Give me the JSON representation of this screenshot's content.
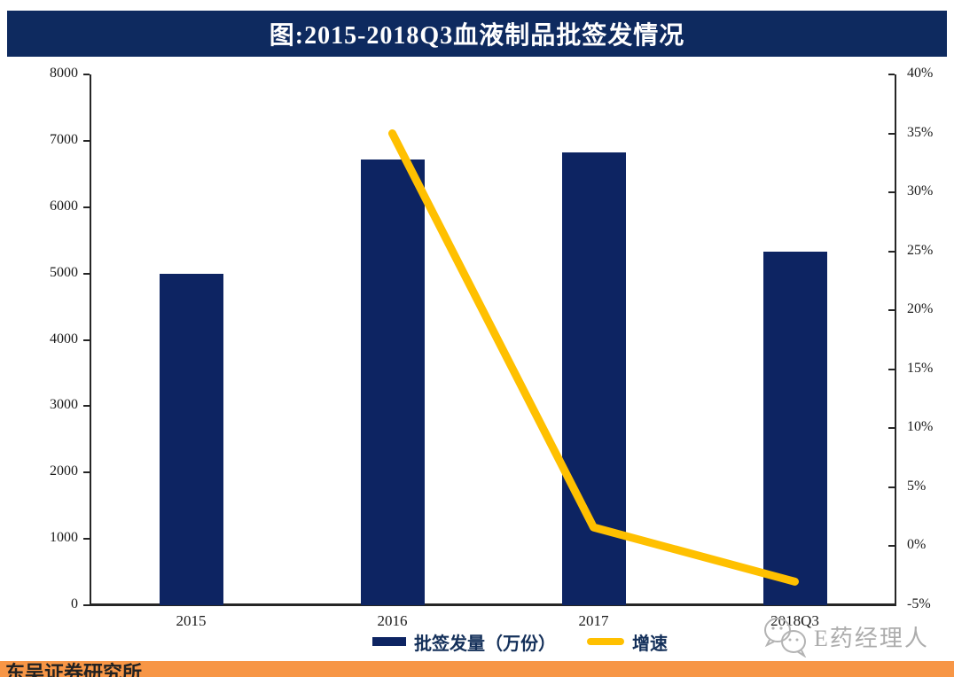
{
  "title": {
    "text": "图:2015-2018Q3血液制品批签发情况"
  },
  "chart_data": {
    "type": "bar",
    "subtype": "bar+line combo, dual axis",
    "title": "图:2015-2018Q3血液制品批签发情况",
    "categories": [
      "2015",
      "2016",
      "2017",
      "2018Q3"
    ],
    "series": [
      {
        "name": "批签发量（万份）",
        "type": "bar",
        "axis": "left",
        "color": "#0d2462",
        "values": [
          4990,
          6720,
          6820,
          5330
        ]
      },
      {
        "name": "增速",
        "type": "line",
        "axis": "right",
        "color": "#ffc000",
        "unit": "%",
        "values": [
          null,
          35,
          1.6,
          -3
        ]
      }
    ],
    "left_axis": {
      "min": 0,
      "max": 8000,
      "step": 1000,
      "tick_labels": [
        "0",
        "1000",
        "2000",
        "3000",
        "4000",
        "5000",
        "6000",
        "7000",
        "8000"
      ]
    },
    "right_axis": {
      "min": -5,
      "max": 40,
      "step": 5,
      "tick_labels_top_down": [
        "40%",
        "35%",
        "30%",
        "25%",
        "20%",
        "15%",
        "10%",
        "5%",
        "0%",
        "-5%"
      ]
    },
    "grid": false,
    "legend_position": "bottom"
  },
  "watermark": {
    "text": "E药经理人",
    "logo": "chat-bubbles-icon"
  },
  "source_bar": {
    "text": "东吴证券研究所",
    "color": "#f79646"
  },
  "colors": {
    "navy": "#0d2462",
    "banner": "#0e2a5f",
    "yellow": "#ffc000",
    "orange": "#f79646",
    "axis": "#262626",
    "watermark_gray": "#acacac"
  }
}
